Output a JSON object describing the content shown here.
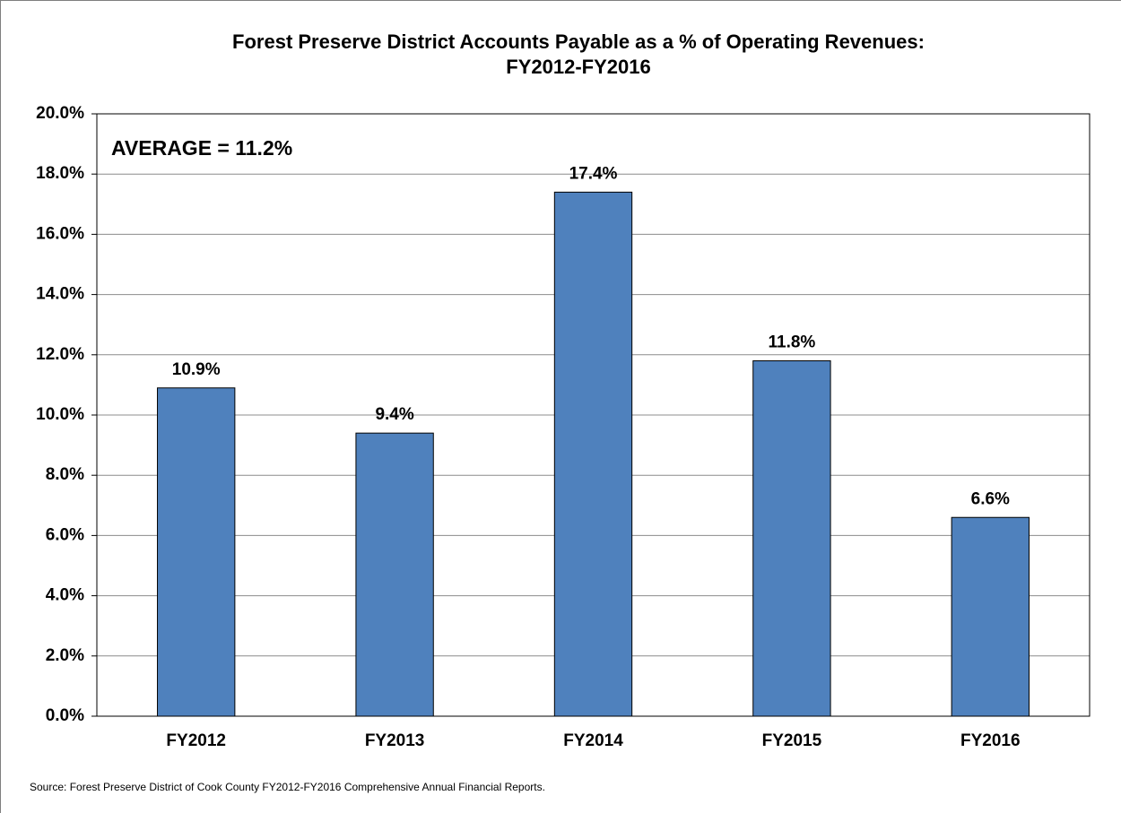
{
  "chart_data": {
    "type": "bar",
    "title": [
      "Forest Preserve District Accounts Payable as a % of Operating Revenues:",
      "FY2012-FY2016"
    ],
    "annotation": "AVERAGE = 11.2%",
    "source": "Source: Forest Preserve District of Cook County FY2012-FY2016 Comprehensive Annual Financial Reports.",
    "categories": [
      "FY2012",
      "FY2013",
      "FY2014",
      "FY2015",
      "FY2016"
    ],
    "values": [
      10.9,
      9.4,
      17.4,
      11.8,
      6.6
    ],
    "value_labels": [
      "10.9%",
      "9.4%",
      "17.4%",
      "11.8%",
      "6.6%"
    ],
    "color": "#4f81bd",
    "ylim": [
      0,
      20
    ],
    "yticks": [
      {
        "value": 0,
        "label": "0.0%"
      },
      {
        "value": 2,
        "label": "2.0%"
      },
      {
        "value": 4,
        "label": "4.0%"
      },
      {
        "value": 6,
        "label": "6.0%"
      },
      {
        "value": 8,
        "label": "8.0%"
      },
      {
        "value": 10,
        "label": "10.0%"
      },
      {
        "value": 12,
        "label": "12.0%"
      },
      {
        "value": 14,
        "label": "14.0%"
      },
      {
        "value": 16,
        "label": "16.0%"
      },
      {
        "value": 18,
        "label": "18.0%"
      },
      {
        "value": 20,
        "label": "20.0%"
      }
    ],
    "grid": true
  }
}
